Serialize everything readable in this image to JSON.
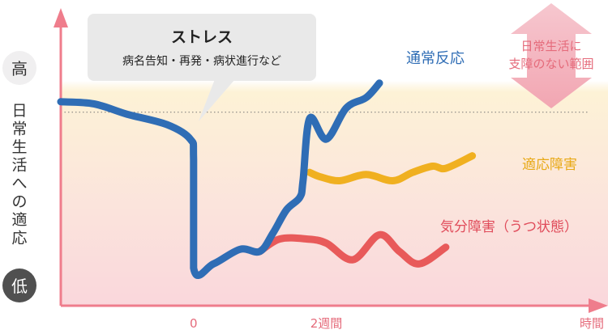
{
  "chart_data": {
    "type": "line",
    "title": "",
    "ylabel": "日常生活への適応",
    "y_high_label": "高",
    "y_low_label": "低",
    "xlabel": "時間",
    "x_ticks": [
      {
        "label": "0",
        "x": 0
      },
      {
        "label": "2週間",
        "x": 2
      }
    ],
    "xlim": [
      -2,
      6
    ],
    "ylim": [
      0,
      100
    ],
    "threshold": {
      "y": 83,
      "label_lines": [
        "日常生活に",
        "支障のない範囲"
      ]
    },
    "callout": {
      "title": "ストレス",
      "subtitle": "病名告知・再発・病状進行など"
    },
    "series": [
      {
        "name": "通常反応",
        "color": "#2f6db5",
        "points": [
          [
            -2,
            88
          ],
          [
            -1.5,
            87
          ],
          [
            -1,
            82
          ],
          [
            -0.4,
            77
          ],
          [
            -0.05,
            70
          ],
          [
            0,
            60
          ],
          [
            0,
            8
          ],
          [
            0.3,
            10
          ],
          [
            0.7,
            17
          ],
          [
            1,
            16
          ],
          [
            1.2,
            25
          ],
          [
            1.4,
            36
          ],
          [
            1.6,
            42
          ],
          [
            1.65,
            50
          ],
          [
            1.75,
            80
          ],
          [
            2,
            70
          ],
          [
            2.3,
            85
          ],
          [
            2.6,
            90
          ],
          [
            2.8,
            97
          ]
        ]
      },
      {
        "name": "適応障害",
        "color": "#f0b020",
        "points": [
          [
            1.75,
            54
          ],
          [
            1.9,
            52
          ],
          [
            2.2,
            50
          ],
          [
            2.6,
            53
          ],
          [
            3,
            50
          ],
          [
            3.3,
            54
          ],
          [
            3.6,
            57
          ],
          [
            3.8,
            56
          ],
          [
            4.2,
            62
          ]
        ]
      },
      {
        "name": "気分障害（うつ状態）",
        "color": "#e85a5a",
        "points": [
          [
            1,
            16
          ],
          [
            1.3,
            22
          ],
          [
            1.7,
            22
          ],
          [
            2,
            20
          ],
          [
            2.4,
            12
          ],
          [
            2.8,
            24
          ],
          [
            3.1,
            16
          ],
          [
            3.4,
            10
          ],
          [
            3.8,
            18
          ]
        ]
      }
    ]
  }
}
